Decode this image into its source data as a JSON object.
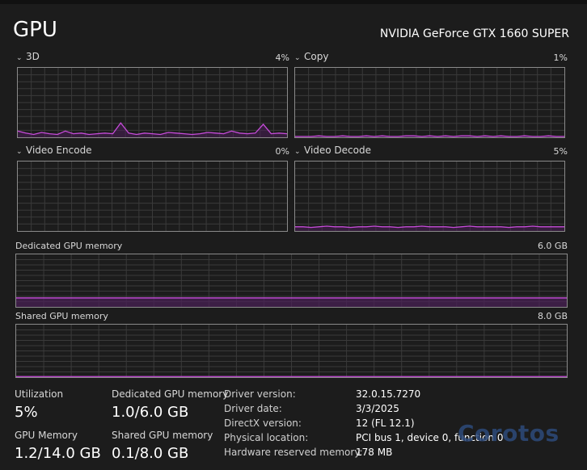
{
  "header": {
    "title": "GPU",
    "gpu_name": "NVIDIA GeForce GTX 1660 SUPER"
  },
  "engines": [
    {
      "label": "3D",
      "percent": "4%",
      "chevron": "⌄",
      "level": [
        0.08,
        0.05,
        0.03,
        0.06,
        0.04,
        0.03,
        0.08,
        0.04,
        0.05,
        0.03,
        0.04,
        0.05,
        0.04,
        0.2,
        0.05,
        0.03,
        0.05,
        0.04,
        0.03,
        0.06,
        0.05,
        0.04,
        0.03,
        0.04,
        0.06,
        0.05,
        0.04,
        0.08,
        0.05,
        0.04,
        0.05,
        0.18,
        0.04,
        0.05,
        0.04
      ]
    },
    {
      "label": "Copy",
      "percent": "1%",
      "chevron": "⌄",
      "level": [
        0.0,
        0.0,
        0.0,
        0.01,
        0.0,
        0.0,
        0.01,
        0.0,
        0.0,
        0.01,
        0.0,
        0.01,
        0.0,
        0.0,
        0.01,
        0.01,
        0.0,
        0.01,
        0.0,
        0.01,
        0.0,
        0.01,
        0.01,
        0.0,
        0.01,
        0.0,
        0.01,
        0.0,
        0.0,
        0.01,
        0.0,
        0.0,
        0.01,
        0.0,
        0.0
      ]
    },
    {
      "label": "Video Encode",
      "percent": "0%",
      "chevron": "⌄",
      "level": []
    },
    {
      "label": "Video Decode",
      "percent": "5%",
      "chevron": "⌄",
      "level": [
        0.05,
        0.05,
        0.04,
        0.05,
        0.06,
        0.05,
        0.05,
        0.04,
        0.05,
        0.05,
        0.06,
        0.05,
        0.05,
        0.04,
        0.05,
        0.05,
        0.06,
        0.05,
        0.05,
        0.05,
        0.04,
        0.05,
        0.06,
        0.05,
        0.05,
        0.05,
        0.05,
        0.04,
        0.05,
        0.05,
        0.06,
        0.05,
        0.05,
        0.05,
        0.05
      ]
    }
  ],
  "dedicated": {
    "label": "Dedicated GPU memory",
    "max": "6.0 GB",
    "level": 0.17
  },
  "shared": {
    "label": "Shared GPU memory",
    "max": "8.0 GB",
    "level": 0.012
  },
  "stats": {
    "utilization_label": "Utilization",
    "utilization_value": "5%",
    "dedicated_label": "Dedicated GPU memory",
    "dedicated_value": "1.0/6.0 GB",
    "gpu_memory_label": "GPU Memory",
    "gpu_memory_value": "1.2/14.0 GB",
    "shared_label": "Shared GPU memory",
    "shared_value": "0.1/8.0 GB"
  },
  "info": [
    {
      "label": "Driver version:",
      "value": "32.0.15.7270"
    },
    {
      "label": "Driver date:",
      "value": "3/3/2025"
    },
    {
      "label": "DirectX version:",
      "value": "12 (FL 12.1)"
    },
    {
      "label": "Physical location:",
      "value": "PCI bus 1, device 0, function 0"
    },
    {
      "label": "Hardware reserved memory:",
      "value": "178 MB"
    }
  ],
  "watermark": "Corotos",
  "colors": {
    "accent": "#c64bd9",
    "fill": "#4a1f57",
    "grid": "#3a3a3a",
    "border": "#8a8a8a"
  }
}
